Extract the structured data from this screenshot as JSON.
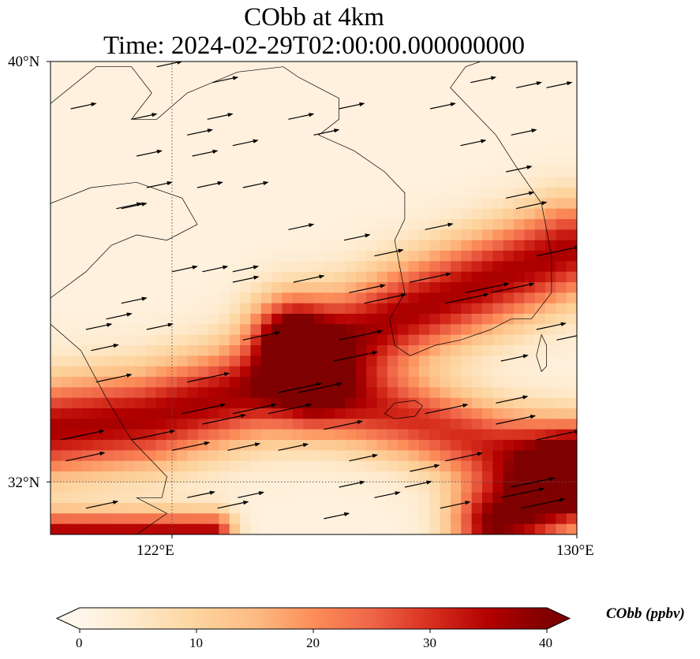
{
  "title": {
    "line1": "CObb at 4km",
    "line2": "Time: 2024-02-29T02:00:00.000000000"
  },
  "map": {
    "extent": {
      "lon_min": 119.6,
      "lon_max": 130.0,
      "lat_min": 31.0,
      "lat_max": 40.0
    },
    "lat_ticks": [
      {
        "value": 40,
        "label": "40°N"
      },
      {
        "value": 32,
        "label": "32°N"
      }
    ],
    "lon_ticks": [
      {
        "value": 122,
        "label": "122°E"
      },
      {
        "value": 130,
        "label": "130°E"
      }
    ],
    "gridlines": "dotted",
    "field": "CObb",
    "colormap": "OrRd",
    "plumes": [
      {
        "name": "northern plume",
        "path": [
          [
            129.8,
            36.4
          ],
          [
            126.6,
            35.2
          ],
          [
            125.0,
            34.5
          ],
          [
            123.8,
            33.8
          ],
          [
            121.5,
            33.2
          ],
          [
            119.6,
            33.0
          ]
        ],
        "peak": 34,
        "width": 0.65
      },
      {
        "name": "southern plume",
        "path": [
          [
            124.3,
            34.8
          ],
          [
            125.0,
            33.6
          ],
          [
            126.7,
            33.2
          ],
          [
            128.3,
            32.7
          ],
          [
            130.0,
            32.4
          ]
        ],
        "peak": 28,
        "width": 0.55
      },
      {
        "name": "southeast maximum",
        "path": [
          [
            130.0,
            32.0
          ],
          [
            128.4,
            31.2
          ]
        ],
        "peak": 38,
        "width": 0.6
      },
      {
        "name": "southwest edge",
        "path": [
          [
            119.6,
            31.0
          ],
          [
            122.8,
            31.0
          ]
        ],
        "peak": 34,
        "width": 0.3
      }
    ],
    "coastlines": [
      [
        [
          119.6,
          39.2
        ],
        [
          120.5,
          39.9
        ],
        [
          121.2,
          39.9
        ],
        [
          121.6,
          39.4
        ],
        [
          121.2,
          38.9
        ],
        [
          121.7,
          38.9
        ],
        [
          122.3,
          39.4
        ],
        [
          123.3,
          39.8
        ],
        [
          124.2,
          39.9
        ],
        [
          124.5,
          39.7
        ],
        [
          124.9,
          39.5
        ],
        [
          125.3,
          39.3
        ],
        [
          125.3,
          38.9
        ],
        [
          124.9,
          38.6
        ],
        [
          125.6,
          38.3
        ],
        [
          126.2,
          37.9
        ],
        [
          126.6,
          37.5
        ],
        [
          126.6,
          37.0
        ],
        [
          126.4,
          36.6
        ],
        [
          126.5,
          36.1
        ],
        [
          126.6,
          35.6
        ],
        [
          126.3,
          35.1
        ],
        [
          126.4,
          34.6
        ],
        [
          126.7,
          34.4
        ],
        [
          127.2,
          34.6
        ],
        [
          127.7,
          34.7
        ],
        [
          128.3,
          34.9
        ],
        [
          128.7,
          35.1
        ],
        [
          129.1,
          35.1
        ],
        [
          129.5,
          35.6
        ],
        [
          129.5,
          36.3
        ],
        [
          129.4,
          36.8
        ],
        [
          129.3,
          37.3
        ],
        [
          128.8,
          38.0
        ],
        [
          128.4,
          38.6
        ],
        [
          127.9,
          39.1
        ],
        [
          127.5,
          39.5
        ],
        [
          127.8,
          39.9
        ],
        [
          128.1,
          40.0
        ]
      ],
      [
        [
          119.6,
          37.3
        ],
        [
          120.4,
          37.6
        ],
        [
          121.3,
          37.7
        ],
        [
          122.2,
          37.4
        ],
        [
          122.5,
          36.9
        ],
        [
          121.9,
          36.6
        ],
        [
          121.3,
          36.7
        ],
        [
          120.8,
          36.5
        ],
        [
          120.3,
          36.0
        ],
        [
          119.6,
          35.5
        ]
      ],
      [
        [
          119.6,
          35.0
        ],
        [
          120.2,
          34.5
        ],
        [
          120.7,
          33.6
        ],
        [
          121.2,
          32.8
        ],
        [
          121.9,
          32.1
        ],
        [
          121.8,
          31.7
        ],
        [
          121.3,
          31.7
        ],
        [
          121.9,
          31.4
        ],
        [
          121.3,
          31.0
        ]
      ]
    ],
    "islands": [
      [
        [
          126.2,
          33.3
        ],
        [
          126.4,
          33.5
        ],
        [
          126.8,
          33.55
        ],
        [
          126.95,
          33.45
        ],
        [
          126.8,
          33.25
        ],
        [
          126.4,
          33.2
        ],
        [
          126.2,
          33.3
        ]
      ],
      [
        [
          129.3,
          34.8
        ],
        [
          129.4,
          34.6
        ],
        [
          129.4,
          34.2
        ],
        [
          129.3,
          34.1
        ],
        [
          129.2,
          34.4
        ],
        [
          129.3,
          34.8
        ]
      ]
    ],
    "arrow_rows": [
      {
        "lat": 39.9,
        "lons": [
          121.7
        ]
      },
      {
        "lat": 39.6,
        "lons": [
          122.8,
          127.9
        ]
      },
      {
        "lat": 39.5,
        "lons": [
          129.4,
          128.8
        ]
      },
      {
        "lat": 39.1,
        "lons": [
          120.0,
          125.3,
          127.1
        ]
      },
      {
        "lat": 38.9,
        "lons": [
          121.2,
          122.7,
          124.3
        ]
      },
      {
        "lat": 38.6,
        "lons": [
          122.3,
          124.8,
          128.7
        ]
      },
      {
        "lat": 38.4,
        "lons": [
          123.2,
          127.7
        ]
      },
      {
        "lat": 38.2,
        "lons": [
          121.3,
          122.4
        ]
      },
      {
        "lat": 37.9,
        "lons": [
          128.6
        ]
      },
      {
        "lat": 37.6,
        "lons": [
          121.5,
          122.5,
          123.4
        ]
      },
      {
        "lat": 37.4,
        "lons": [
          128.6
        ]
      },
      {
        "lat": 37.2,
        "lons": [
          120.9,
          121.0,
          128.8
        ]
      },
      {
        "lat": 36.8,
        "lons": [
          124.3,
          127.0
        ]
      },
      {
        "lat": 36.6,
        "lons": [
          125.4
        ]
      },
      {
        "lat": 36.3,
        "lons": [
          126.0,
          129.2
        ]
      },
      {
        "lat": 36.0,
        "lons": [
          122.0,
          122.6,
          123.2
        ]
      },
      {
        "lat": 35.8,
        "lons": [
          123.2,
          124.4,
          126.7
        ]
      },
      {
        "lat": 35.6,
        "lons": [
          125.5,
          127.8,
          128.3
        ]
      },
      {
        "lat": 35.4,
        "lons": [
          121.0,
          125.8,
          127.4
        ]
      },
      {
        "lat": 35.1,
        "lons": [
          120.7
        ]
      },
      {
        "lat": 34.9,
        "lons": [
          120.3,
          121.5,
          129.2
        ]
      },
      {
        "lat": 34.7,
        "lons": [
          123.4,
          125.3,
          129.6
        ]
      },
      {
        "lat": 34.5,
        "lons": [
          120.4
        ]
      },
      {
        "lat": 34.3,
        "lons": [
          125.2,
          128.5
        ]
      },
      {
        "lat": 33.9,
        "lons": [
          120.5,
          122.3
        ]
      },
      {
        "lat": 33.7,
        "lons": [
          124.1,
          124.5
        ]
      },
      {
        "lat": 33.5,
        "lons": [
          128.4
        ]
      },
      {
        "lat": 33.3,
        "lons": [
          122.2,
          123.2,
          123.9,
          127.0
        ]
      },
      {
        "lat": 33.1,
        "lons": [
          122.6,
          128.4
        ]
      },
      {
        "lat": 33.0,
        "lons": [
          125.0
        ]
      },
      {
        "lat": 32.8,
        "lons": [
          119.8,
          121.2,
          129.2
        ]
      },
      {
        "lat": 32.6,
        "lons": [
          122.0,
          123.1,
          124.1
        ]
      },
      {
        "lat": 32.4,
        "lons": [
          119.9,
          125.5,
          127.4
        ]
      },
      {
        "lat": 32.2,
        "lons": [
          126.7
        ]
      },
      {
        "lat": 31.9,
        "lons": [
          125.3,
          126.6,
          128.7
        ]
      },
      {
        "lat": 31.7,
        "lons": [
          122.3,
          123.3,
          126.0,
          128.5
        ]
      },
      {
        "lat": 31.5,
        "lons": [
          120.3,
          122.9,
          127.3,
          128.9
        ]
      },
      {
        "lat": 31.3,
        "lons": [
          125.0
        ]
      }
    ],
    "arrow_direction_deg": 12
  },
  "colorbar": {
    "label": "CObb (ppbv)",
    "min": 0,
    "max": 40,
    "extend": "both",
    "ticks": [
      {
        "value": 0,
        "label": "0"
      },
      {
        "value": 10,
        "label": "10"
      },
      {
        "value": 20,
        "label": "20"
      },
      {
        "value": 30,
        "label": "30"
      },
      {
        "value": 40,
        "label": "40"
      }
    ],
    "colors": [
      "#fff7ec",
      "#fee8c8",
      "#fdd49e",
      "#fdbb84",
      "#fc8d59",
      "#ef6548",
      "#d7301f",
      "#b30000",
      "#7f0000"
    ]
  }
}
